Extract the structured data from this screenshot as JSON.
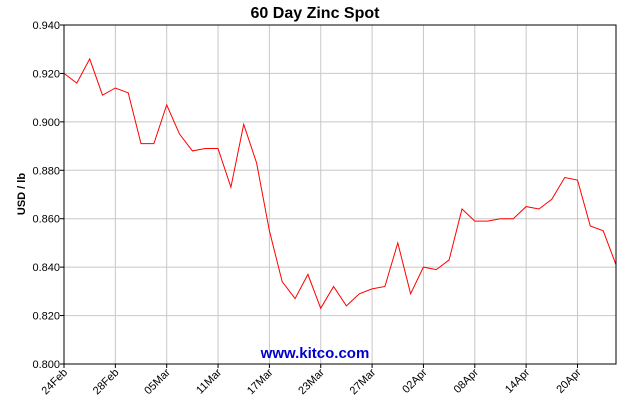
{
  "chart_data": {
    "type": "line",
    "title": "60 Day Zinc Spot",
    "ylabel": "USD / lb",
    "xlabel": "",
    "ylim": [
      0.8,
      0.94
    ],
    "yticks": [
      "0.800",
      "0.820",
      "0.840",
      "0.860",
      "0.880",
      "0.900",
      "0.920",
      "0.940"
    ],
    "ytick_values": [
      0.8,
      0.82,
      0.84,
      0.86,
      0.88,
      0.9,
      0.92,
      0.94
    ],
    "xtick_labels": [
      "24Feb",
      "28Feb",
      "05Mar",
      "11Mar",
      "17Mar",
      "23Mar",
      "27Mar",
      "02Apr",
      "08Apr",
      "14Apr",
      "20Apr"
    ],
    "xtick_indices": [
      0,
      4,
      8,
      12,
      16,
      20,
      24,
      28,
      32,
      36,
      40
    ],
    "grid": true,
    "series": [
      {
        "color": "#ff0000",
        "values": [
          0.92,
          0.916,
          0.926,
          0.911,
          0.914,
          0.912,
          0.891,
          0.891,
          0.907,
          0.895,
          0.888,
          0.889,
          0.889,
          0.873,
          0.899,
          0.883,
          0.855,
          0.834,
          0.827,
          0.837,
          0.823,
          0.832,
          0.824,
          0.829,
          0.831,
          0.832,
          0.85,
          0.829,
          0.84,
          0.839,
          0.843,
          0.864,
          0.859,
          0.859,
          0.86,
          0.86,
          0.865,
          0.864,
          0.868,
          0.877,
          0.876,
          0.857,
          0.855,
          0.841
        ]
      }
    ]
  },
  "watermark": "www.kitco.com"
}
